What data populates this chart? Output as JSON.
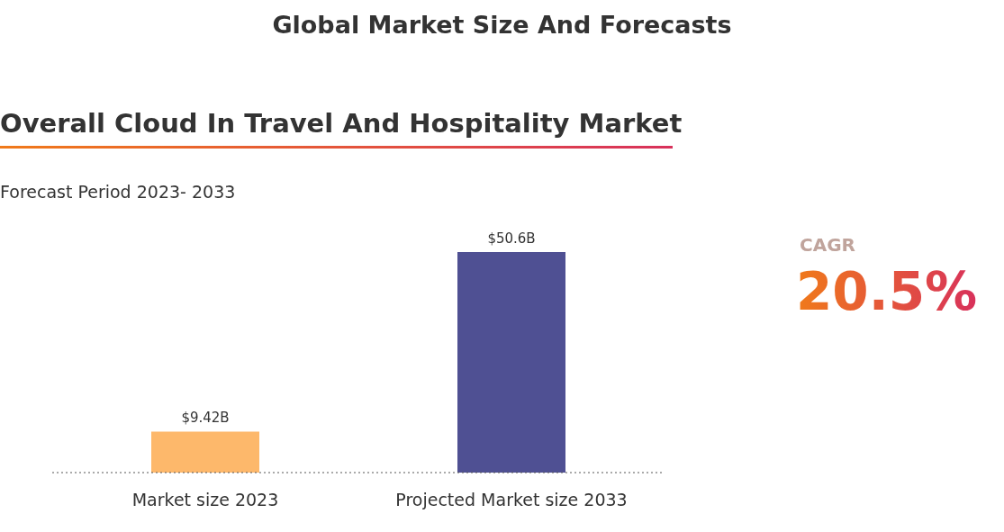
{
  "chart_data": {
    "type": "bar",
    "title": "Global Market Size And Forecasts",
    "subtitle": "Overall Cloud In Travel And Hospitality Market",
    "annotations": [
      "Forecast Period 2023- 2033",
      "CAGR",
      "20.5%"
    ],
    "categories": [
      "Market size 2023",
      "Projected Market size 2033"
    ],
    "values": [
      9.42,
      50.6
    ],
    "colors": [
      "#fdb86b",
      "#4f5093"
    ],
    "value_labels": [
      "$9.42B",
      "$50.6B"
    ],
    "grid": false,
    "legend": false
  }
}
